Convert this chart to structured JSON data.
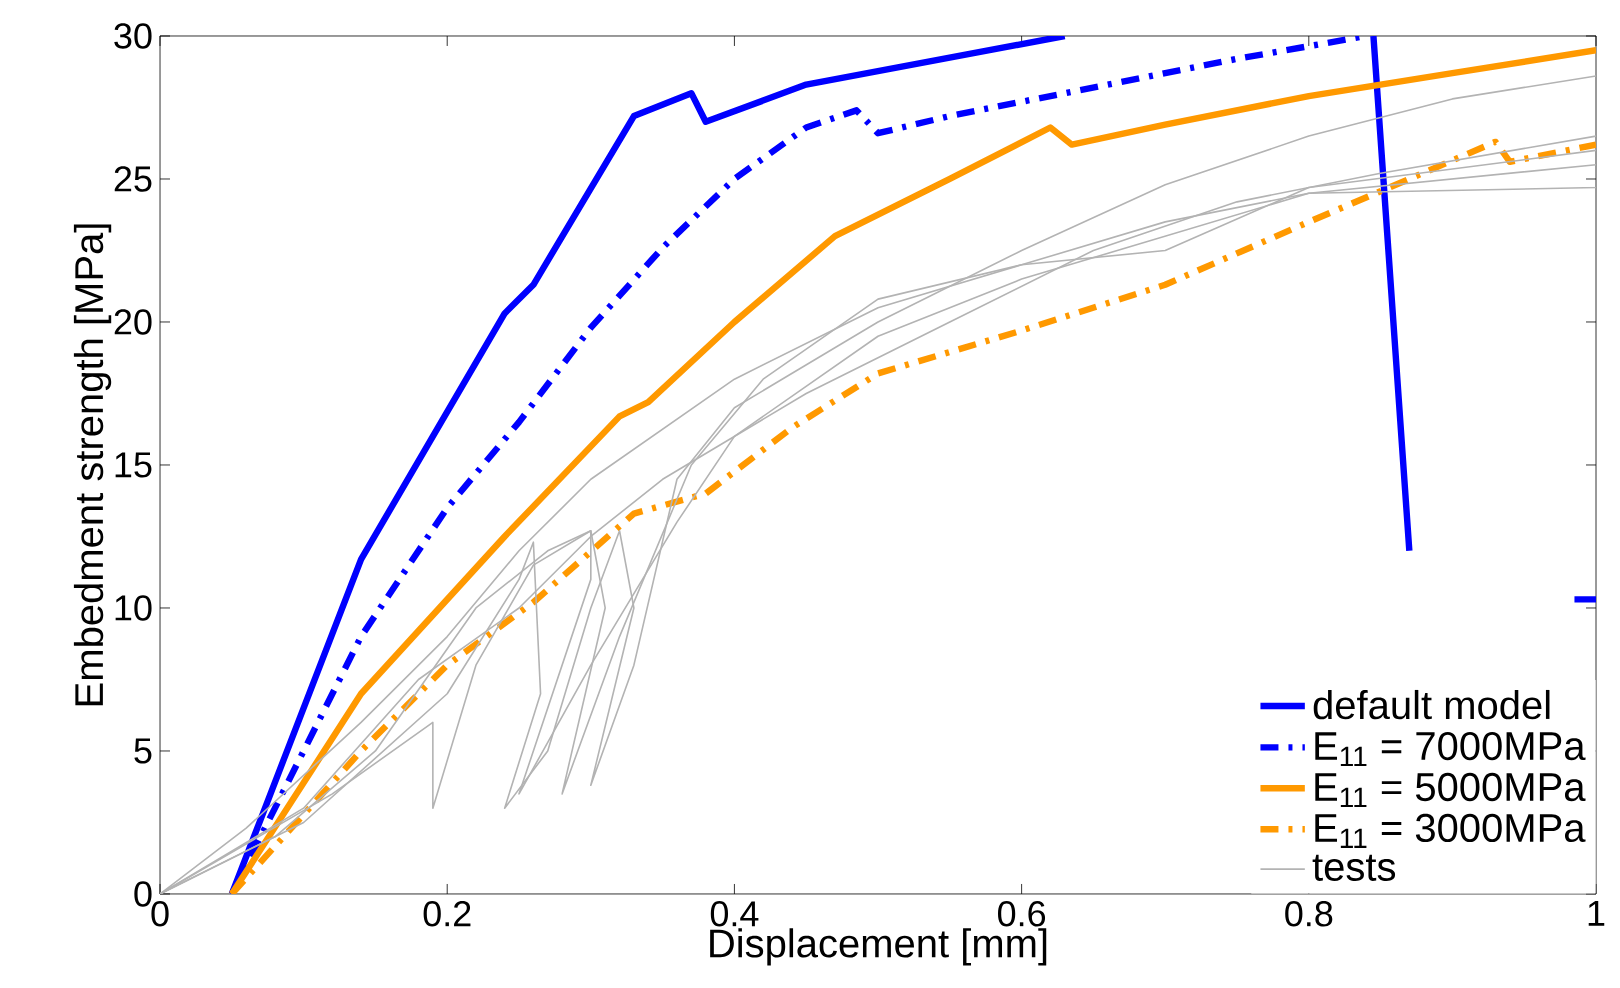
{
  "chart_data": {
    "type": "line",
    "xlabel": "Displacement [mm]",
    "ylabel": "Embedment strength [MPa]",
    "xlim": [
      0,
      1
    ],
    "ylim": [
      0,
      30
    ],
    "xticks": [
      0,
      0.2,
      0.4,
      0.6,
      0.8,
      1
    ],
    "yticks": [
      0,
      5,
      10,
      15,
      20,
      25,
      30
    ],
    "grid": false,
    "legend": "bottom right",
    "series": [
      {
        "name": "default model",
        "color": "#0000ff",
        "line_style": "solid",
        "x": [
          0.05,
          0.14,
          0.24,
          0.26,
          0.33,
          0.37,
          0.38,
          0.45,
          0.63,
          0.7,
          0.845,
          0.87,
          0.95,
          0.985,
          1
        ],
        "values": [
          0,
          11.7,
          20.3,
          21.3,
          27.2,
          28,
          27,
          28.3,
          30,
          null,
          30,
          12,
          null,
          10.3,
          10.3
        ]
      },
      {
        "name": "E$_{11}$ = 7000MPa",
        "color": "#0000ff",
        "line_style": "dashdot",
        "x": [
          0.05,
          0.14,
          0.2,
          0.25,
          0.3,
          0.35,
          0.4,
          0.45,
          0.485,
          0.5,
          0.55,
          0.65,
          0.75,
          0.84
        ],
        "values": [
          0,
          9,
          13.5,
          16.5,
          19.8,
          22.6,
          25,
          26.8,
          27.4,
          26.6,
          27.2,
          28.2,
          29.2,
          30
        ]
      },
      {
        "name": "E$_{11}$ = 5000MPa",
        "color": "#ff9900",
        "line_style": "solid",
        "x": [
          0.05,
          0.14,
          0.24,
          0.32,
          0.34,
          0.4,
          0.47,
          0.55,
          0.62,
          0.635,
          0.7,
          0.8,
          0.9,
          1
        ],
        "values": [
          0,
          7,
          12.5,
          16.7,
          17.2,
          20,
          23,
          25,
          26.8,
          26.2,
          26.9,
          27.9,
          28.7,
          29.5
        ]
      },
      {
        "name": "E$_{11}$ = 3000MPa",
        "color": "#ff9900",
        "line_style": "dashdot",
        "x": [
          0.05,
          0.14,
          0.2,
          0.26,
          0.33,
          0.38,
          0.44,
          0.5,
          0.6,
          0.7,
          0.8,
          0.87,
          0.93,
          0.94,
          1
        ],
        "values": [
          0,
          5,
          8,
          10.2,
          13.3,
          14,
          16.3,
          18.2,
          19.7,
          21.3,
          23.5,
          25,
          26.3,
          25.6,
          26.2
        ]
      },
      {
        "name": "tests",
        "color": "#b3b3b3",
        "line_style": "solid",
        "x": [
          0,
          0.06,
          0.14,
          0.2,
          0.25,
          0.3,
          0.4,
          0.5,
          0.6,
          0.7,
          0.8,
          1
        ],
        "values": [
          0,
          2.3,
          6,
          9,
          12,
          14.5,
          18,
          20.5,
          22,
          23.5,
          24.5,
          24.7
        ]
      },
      {
        "color": "#b3b3b3",
        "line_style": "solid",
        "x": [
          0,
          0.1,
          0.18,
          0.25,
          0.3,
          0.35,
          0.45,
          0.55,
          0.65,
          0.75,
          0.85,
          1
        ],
        "values": [
          0,
          3,
          7.5,
          10,
          12.5,
          14.5,
          17.5,
          20,
          22.5,
          24.2,
          25.2,
          26.5
        ]
      },
      {
        "color": "#b3b3b3",
        "line_style": "solid",
        "x": [
          0,
          0.1,
          0.2,
          0.25,
          0.26,
          0.265,
          0.24,
          0.27,
          0.3,
          0.32,
          0.33,
          0.3,
          0.33,
          0.36,
          0.4,
          0.5,
          0.6,
          0.7,
          0.8,
          0.9,
          1
        ],
        "values": [
          0,
          2.5,
          7,
          11,
          12.3,
          7,
          3,
          5,
          10,
          12.7,
          10,
          3.8,
          8,
          14.5,
          17,
          20,
          22.5,
          24.8,
          26.5,
          27.8,
          28.6
        ]
      },
      {
        "color": "#b3b3b3",
        "line_style": "solid",
        "x": [
          0,
          0.12,
          0.19,
          0.19,
          0.22,
          0.26,
          0.3,
          0.31,
          0.28,
          0.32,
          0.37,
          0.42,
          0.5,
          0.6,
          0.7,
          0.8,
          1
        ],
        "values": [
          0,
          3.5,
          6,
          3,
          8,
          11.5,
          12.7,
          10,
          3.5,
          9,
          15,
          18,
          20.8,
          22,
          22.5,
          24.7,
          26
        ]
      },
      {
        "color": "#b3b3b3",
        "line_style": "solid",
        "x": [
          0,
          0.08,
          0.15,
          0.22,
          0.27,
          0.3,
          0.3,
          0.25,
          0.3,
          0.36,
          0.4,
          0.5,
          0.6,
          0.8,
          1
        ],
        "values": [
          0,
          2,
          5,
          10,
          12,
          12.7,
          11,
          3.5,
          8,
          13,
          16,
          19.5,
          21.5,
          24.5,
          25.5
        ]
      }
    ]
  }
}
